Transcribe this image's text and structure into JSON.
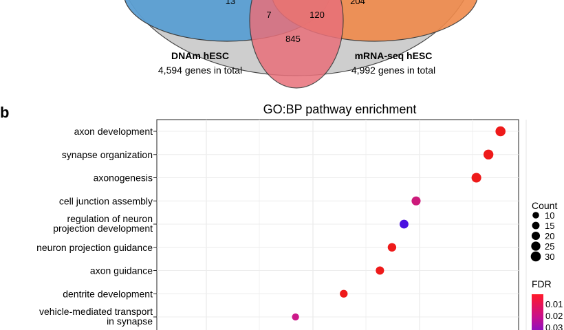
{
  "venn": {
    "labels": [
      {
        "title": "DNAm hESC",
        "subtitle": "4,594 genes in total"
      },
      {
        "title": "mRNA-seq hESC",
        "subtitle": "4,992 genes in total"
      }
    ],
    "counts": {
      "left_only": "13",
      "right_only": "204",
      "center_left": "7",
      "center_right": "120",
      "bottom": "845"
    },
    "colors": {
      "left": "#5b9fd3",
      "right": "#f08a4b",
      "bottom": "#e8707a",
      "top": "#c9c9c9"
    }
  },
  "panel_label": "b",
  "chart_data": {
    "type": "scatter",
    "title": "GO:BP pathway enrichment",
    "categories": [
      "axon development",
      "synapse organization",
      "axonogenesis",
      "cell junction assembly",
      "regulation of neuron\nprojection development",
      "neuron projection guidance",
      "axon guidance",
      "dentrite development",
      "vehicle-mediated transport\nin synapse"
    ],
    "x_values": [
      28.5,
      27.5,
      26.5,
      21.5,
      20.5,
      19.5,
      18.5,
      15.5,
      11.5
    ],
    "count": [
      30,
      29,
      28,
      24,
      23,
      21,
      20,
      17,
      13
    ],
    "fdr_color": [
      "#ee1a1a",
      "#ee1a1a",
      "#ee1a1a",
      "#cc1a7a",
      "#4a10e0",
      "#ee1a1a",
      "#ee1a1a",
      "#ee1a1a",
      "#cc1a8a"
    ],
    "xlim": [
      0,
      30
    ],
    "grid": true,
    "legend_count": {
      "title": "Count",
      "values": [
        "10",
        "15",
        "20",
        "25",
        "30"
      ]
    },
    "legend_fdr": {
      "title": "FDR",
      "values": [
        "0.01",
        "0.02",
        "0.03"
      ]
    },
    "legend_placement": "right"
  }
}
